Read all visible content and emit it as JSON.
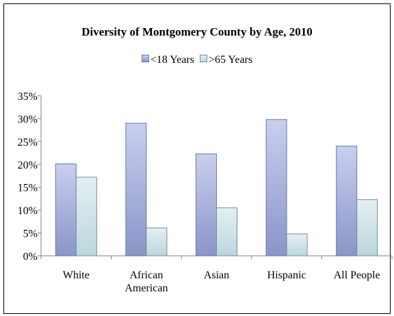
{
  "chart_data": {
    "type": "bar",
    "title": "Diversity of Montgomery County by Age, 2010",
    "categories": [
      "White",
      "African American",
      "Asian",
      "Hispanic",
      "All People"
    ],
    "category_lines": [
      [
        "White"
      ],
      [
        "African",
        "American"
      ],
      [
        "Asian"
      ],
      [
        "Hispanic"
      ],
      [
        "All People"
      ]
    ],
    "series": [
      {
        "name": "<18 Years",
        "values": [
          20.1,
          29.0,
          22.3,
          29.8,
          24.0
        ],
        "color_top": "#c9cff0",
        "color_bottom": "#8a95c8",
        "stroke": "#6b77a8"
      },
      {
        "name": ">65 Years",
        "values": [
          17.2,
          6.1,
          10.5,
          4.8,
          12.3
        ],
        "color_top": "#e4f0f2",
        "color_bottom": "#bcd6de",
        "stroke": "#6f8e98"
      }
    ],
    "yticks": [
      "0%",
      "5%",
      "10%",
      "15%",
      "20%",
      "25%",
      "30%",
      "35%"
    ],
    "ylim": [
      0,
      35
    ],
    "legend_position": "top",
    "grid": false
  }
}
